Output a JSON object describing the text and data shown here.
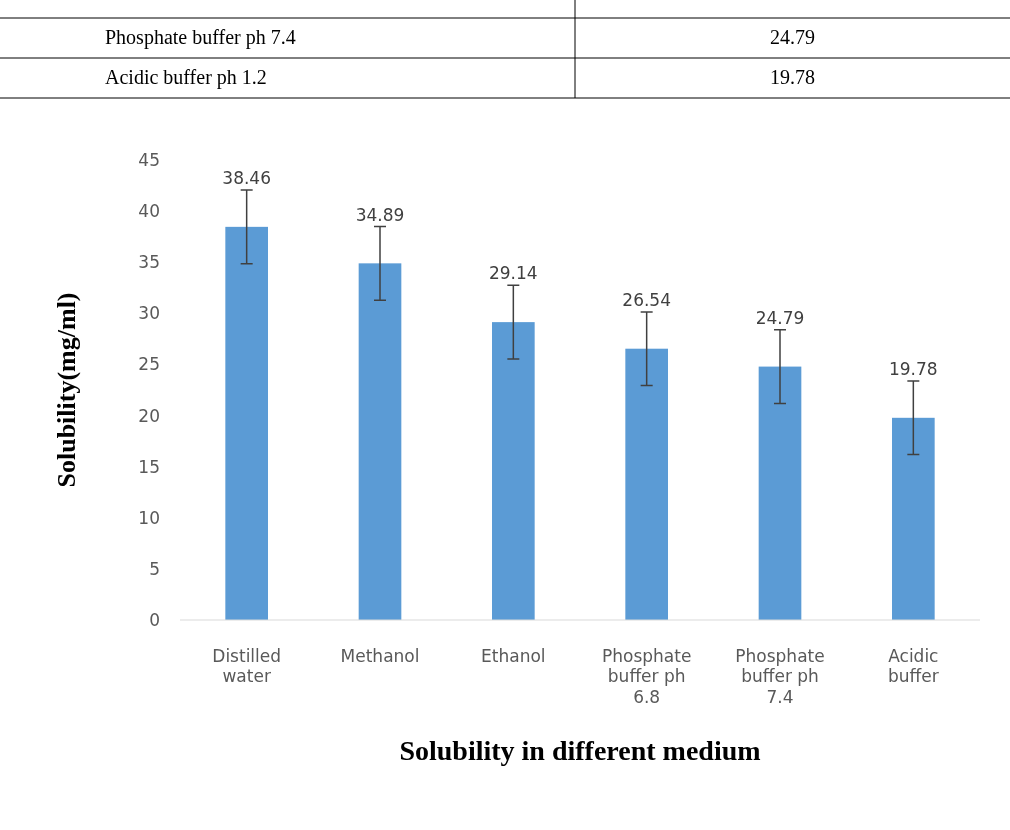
{
  "chart_data": {
    "type": "bar",
    "xlabel": "Solubility in different medium",
    "ylabel": "Solubility(mg/ml)",
    "categories": [
      "Distilled water",
      "Methanol",
      "Ethanol",
      "Phosphate buffer ph 6.8",
      "Phosphate buffer ph 7.4",
      "Acidic buffer"
    ],
    "values": [
      38.46,
      34.89,
      29.14,
      26.54,
      24.79,
      19.78
    ],
    "errors": [
      3.6,
      3.6,
      3.6,
      3.6,
      3.6,
      3.6
    ],
    "color": "#5b9bd5",
    "data_labels": true,
    "ylim": [
      0,
      45
    ],
    "yticks": [
      0,
      5,
      10,
      15,
      20,
      25,
      30,
      35,
      40,
      45
    ],
    "annotations": [
      "Phosphate buffer ph 7.4",
      "24.79",
      "Acidic buffer ph 1.2",
      "19.78"
    ]
  }
}
